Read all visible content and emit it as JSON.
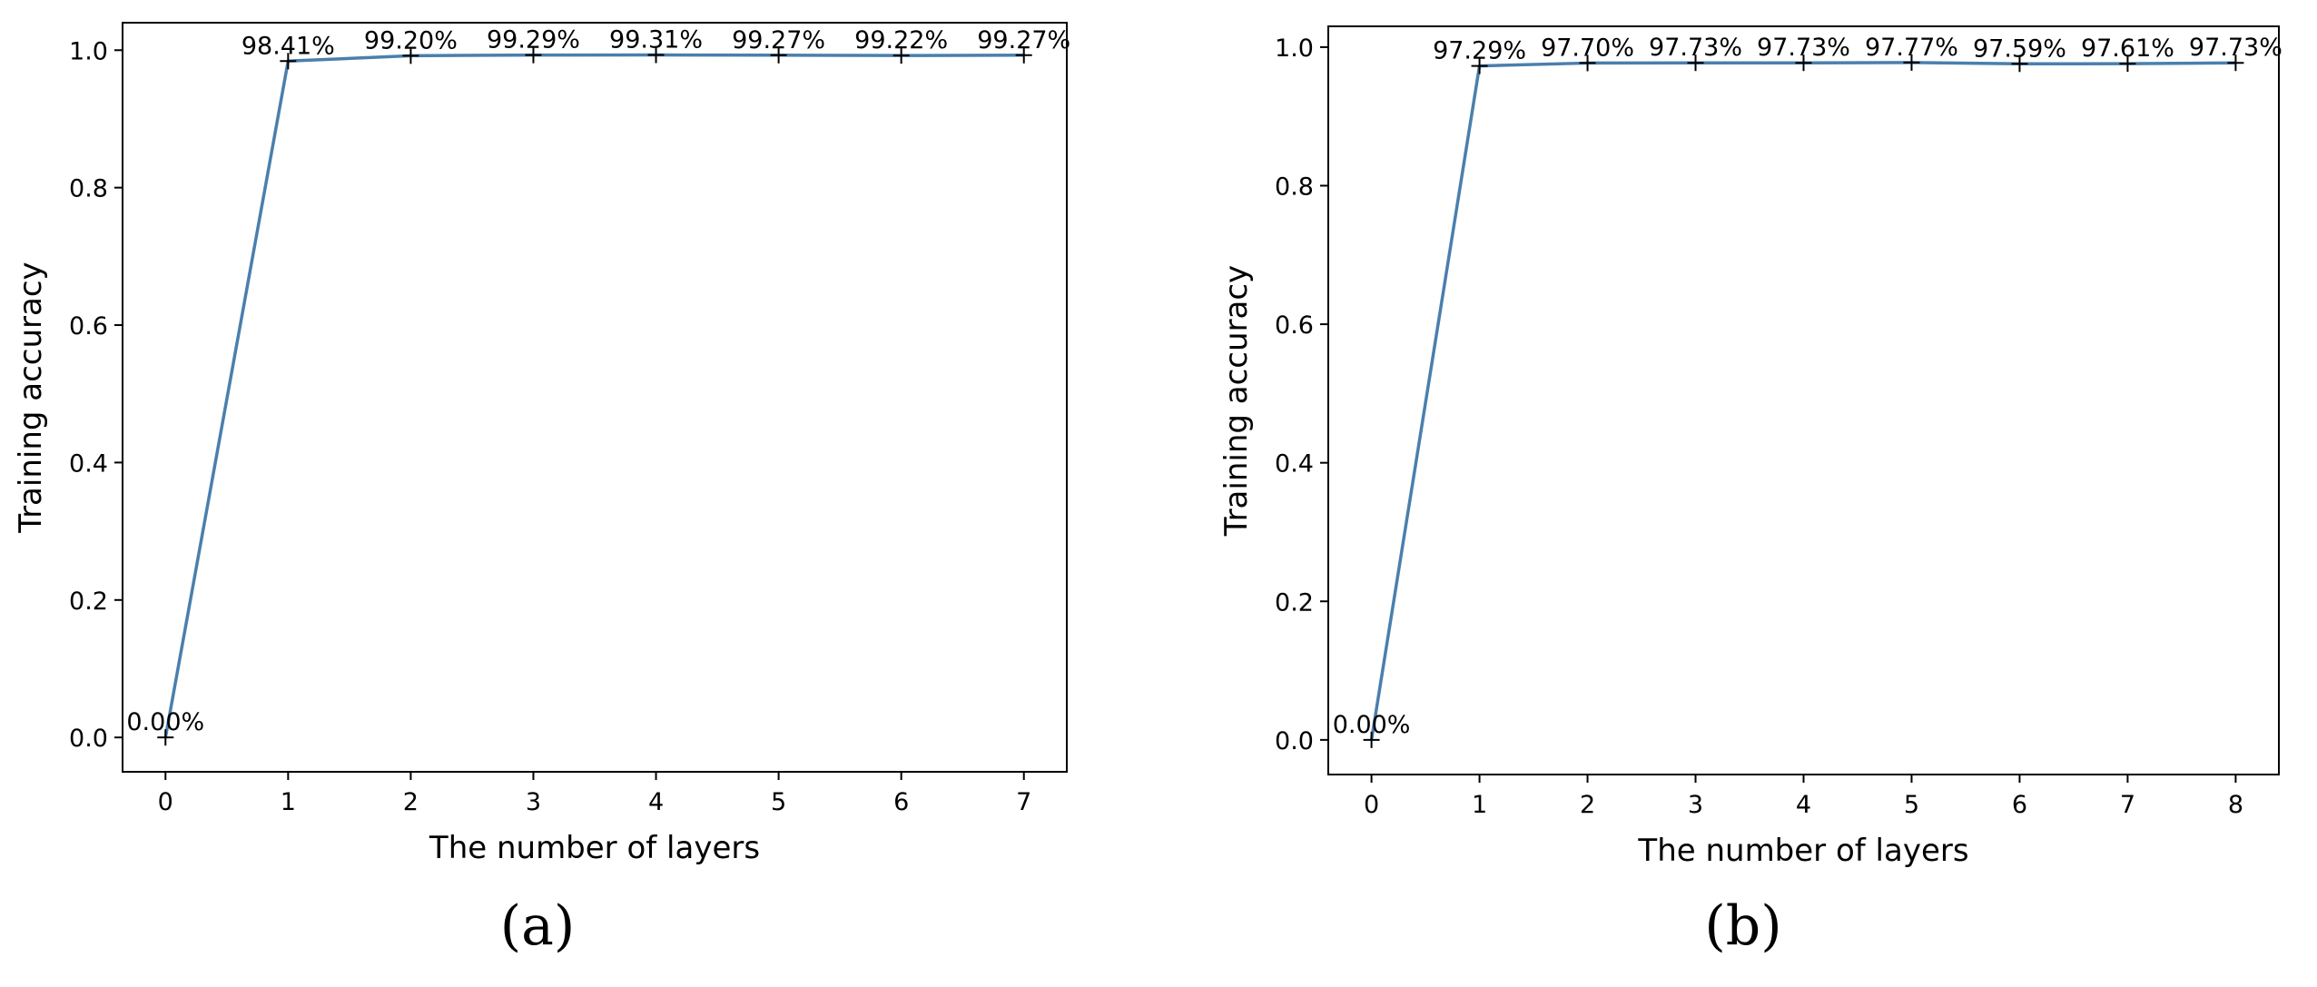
{
  "chart_data": [
    {
      "type": "line",
      "caption": "(a)",
      "xlabel": "The number of layers",
      "ylabel": "Training accuracy",
      "x": [
        0,
        1,
        2,
        3,
        4,
        5,
        6,
        7
      ],
      "values": [
        0.0,
        0.9841,
        0.992,
        0.9929,
        0.9931,
        0.9927,
        0.9922,
        0.9927
      ],
      "data_labels": [
        "0.00%",
        "98.41%",
        "99.20%",
        "99.29%",
        "99.31%",
        "99.27%",
        "99.22%",
        "99.27%"
      ],
      "x_ticks": [
        "0",
        "1",
        "2",
        "3",
        "4",
        "5",
        "6",
        "7"
      ],
      "y_ticks": [
        "0.0",
        "0.2",
        "0.4",
        "0.6",
        "0.8",
        "1.0"
      ],
      "xlim": [
        -0.35,
        7.35
      ],
      "ylim": [
        -0.05,
        1.04
      ],
      "grid": false,
      "marker": "+",
      "line_color": "#4a7fad"
    },
    {
      "type": "line",
      "caption": "(b)",
      "xlabel": "The number of layers",
      "ylabel": "Training accuracy",
      "x": [
        0,
        1,
        2,
        3,
        4,
        5,
        6,
        7,
        8
      ],
      "values": [
        0.0,
        0.9729,
        0.977,
        0.9773,
        0.9773,
        0.9777,
        0.9759,
        0.9761,
        0.9773
      ],
      "data_labels": [
        "0.00%",
        "97.29%",
        "97.70%",
        "97.73%",
        "97.73%",
        "97.77%",
        "97.59%",
        "97.61%",
        "97.73%"
      ],
      "x_ticks": [
        "0",
        "1",
        "2",
        "3",
        "4",
        "5",
        "6",
        "7",
        "8"
      ],
      "y_ticks": [
        "0.0",
        "0.2",
        "0.4",
        "0.6",
        "0.8",
        "1.0"
      ],
      "xlim": [
        -0.4,
        8.4
      ],
      "ylim": [
        -0.05,
        1.03
      ],
      "grid": false,
      "marker": "+",
      "line_color": "#4a7fad"
    }
  ]
}
